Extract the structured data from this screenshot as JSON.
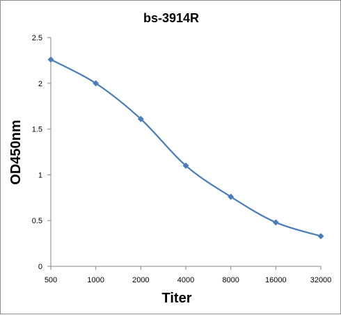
{
  "chart_data": {
    "type": "line",
    "title": "bs-3914R",
    "xlabel": "Titer",
    "ylabel": "OD450nm",
    "categories": [
      "500",
      "1000",
      "2000",
      "4000",
      "8000",
      "16000",
      "32000"
    ],
    "series": [
      {
        "values": [
          2.26,
          2.0,
          1.61,
          1.1,
          0.76,
          0.48,
          0.33
        ],
        "color": "#4a7ebb",
        "marker": "diamond",
        "smooth": true
      }
    ],
    "ylim": [
      0,
      2.5
    ],
    "yticks": [
      "0",
      "0.5",
      "1",
      "1.5",
      "2",
      "2.5"
    ],
    "grid": false,
    "legend": "none"
  }
}
